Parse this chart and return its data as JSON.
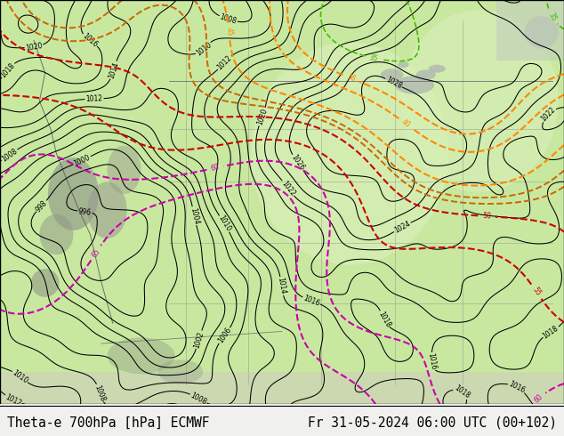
{
  "title_left": "Theta-e 700hPa [hPa] ECMWF",
  "title_right": "Fr 31-05-2024 06:00 UTC (00+102)",
  "bg_color": "#f0f0ee",
  "map_bg_green": "#c8e8a0",
  "map_bg_light_green": "#d8f0b8",
  "title_fontsize": 10.5,
  "title_color": "#000000",
  "fig_width": 6.34,
  "fig_height": 4.9,
  "dpi": 100,
  "border_color": "#000000",
  "bottom_bar_color": "#e8e8e0",
  "contour_color_black": "#000000",
  "contour_color_green": "#44bb00",
  "contour_color_cyan": "#00bbbb",
  "contour_color_orange": "#ff8800",
  "contour_color_dark_orange": "#cc6600",
  "contour_color_red": "#cc0000",
  "contour_color_magenta": "#cc00aa",
  "contour_color_yellow_green": "#99cc00",
  "sea_color": "#c8c8c8",
  "mountain_color": "#a0a0a0",
  "water_color": "#b0c8d8"
}
